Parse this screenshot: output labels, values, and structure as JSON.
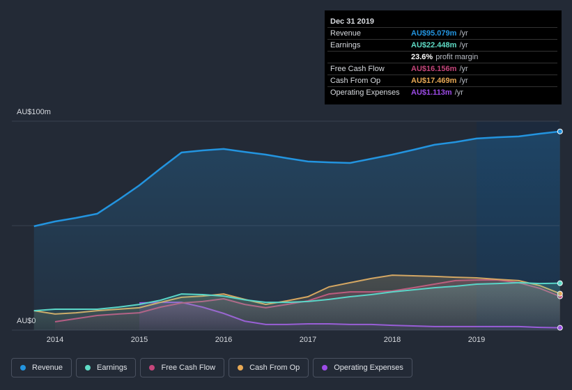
{
  "chart_data": {
    "type": "line",
    "x": [
      2013.75,
      2014,
      2014.25,
      2014.5,
      2014.75,
      2015,
      2015.25,
      2015.5,
      2015.75,
      2016,
      2016.25,
      2016.5,
      2016.75,
      2017,
      2017.25,
      2017.5,
      2017.75,
      2018,
      2018.25,
      2018.5,
      2018.75,
      2019,
      2019.25,
      2019.5,
      2019.75,
      2019.99
    ],
    "xlim": [
      2013.5,
      2019.99
    ],
    "xticks": [
      2014,
      2015,
      2016,
      2017,
      2018,
      2019
    ],
    "ylim": [
      0,
      100
    ],
    "yticks": [
      {
        "value": 0,
        "label": "AU$0"
      },
      {
        "value": 50,
        "label": null
      },
      {
        "value": 100,
        "label": "AU$100m"
      }
    ],
    "grid": true,
    "highlight_from": 2019,
    "series": [
      {
        "name": "Revenue",
        "color": "#2394df",
        "values": [
          49.7,
          52,
          53.7,
          55.7,
          62.3,
          69.3,
          77.3,
          85,
          86,
          86.7,
          85.3,
          84,
          82.3,
          80.7,
          80.3,
          80,
          82,
          84,
          86.3,
          88.7,
          90,
          91.7,
          92.3,
          92.7,
          94,
          95.079
        ]
      },
      {
        "name": "Earnings",
        "color": "#5fdcc6",
        "values": [
          9.3,
          10,
          10,
          10,
          11,
          12.3,
          14.3,
          17.3,
          17,
          16.3,
          14.5,
          13.3,
          13.3,
          13.7,
          14.7,
          16,
          17,
          18.3,
          19.3,
          20.3,
          21,
          22,
          22.3,
          22.7,
          22.3,
          22.448
        ]
      },
      {
        "name": "Free Cash Flow",
        "color": "#c5467b",
        "values": [
          null,
          4,
          5.5,
          7,
          7.7,
          8.3,
          11,
          13,
          13.7,
          15,
          12.3,
          10.7,
          12.3,
          14,
          17.3,
          18.3,
          18.3,
          18.7,
          20.3,
          22,
          23.7,
          24,
          24,
          22.7,
          20,
          16.156
        ]
      },
      {
        "name": "Cash From Op",
        "color": "#e8a955",
        "values": [
          9.3,
          7.7,
          8.3,
          9.3,
          10,
          10.7,
          13.3,
          15.7,
          16.3,
          17.3,
          14.7,
          12.3,
          14,
          16,
          20.7,
          22.7,
          24.7,
          26.3,
          26,
          25.7,
          25.3,
          25,
          24.3,
          23.7,
          21.3,
          17.469
        ]
      },
      {
        "name": "Operating Expenses",
        "color": "#9d4ce8",
        "values": [
          null,
          null,
          null,
          null,
          null,
          13,
          13.3,
          13.3,
          11,
          8,
          4.3,
          2.7,
          2.7,
          3,
          3,
          2.7,
          2.7,
          2.3,
          2,
          1.7,
          1.7,
          1.7,
          1.7,
          1.7,
          1.3,
          1.113
        ]
      }
    ],
    "tooltip": {
      "date": "Dec 31 2019",
      "rows": [
        {
          "label": "Revenue",
          "value": "AU$95.079m",
          "unit": "/yr",
          "color": "#2394df"
        },
        {
          "label": "Earnings",
          "value": "AU$22.448m",
          "unit": "/yr",
          "color": "#5fdcc6"
        },
        {
          "label": null,
          "value": "23.6%",
          "unit": "profit margin",
          "color": "#ffffff"
        },
        {
          "label": "Free Cash Flow",
          "value": "AU$16.156m",
          "unit": "/yr",
          "color": "#c5467b"
        },
        {
          "label": "Cash From Op",
          "value": "AU$17.469m",
          "unit": "/yr",
          "color": "#e8a955"
        },
        {
          "label": "Operating Expenses",
          "value": "AU$1.113m",
          "unit": "/yr",
          "color": "#9d4ce8"
        }
      ]
    }
  }
}
